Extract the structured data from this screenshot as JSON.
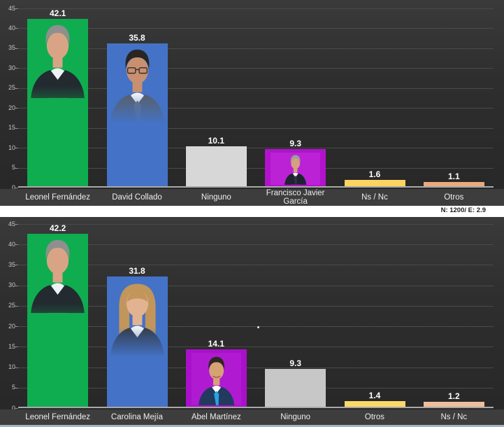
{
  "page": {
    "background": "#ffffff"
  },
  "note": {
    "text": "N: 1200/ E: 2.9"
  },
  "colors": {
    "chart_bg": "#2e2e2e",
    "gridline": "#4a4a4a",
    "axis_line": "#a8a8a8",
    "label_strip": "#3d3d3d",
    "value_label": "#ffffff",
    "tick_label": "#c6c6c6",
    "category_label": "#ededed"
  },
  "chart_data": [
    {
      "type": "bar",
      "title": "",
      "xlabel": "",
      "ylabel": "",
      "ylim": [
        0,
        45
      ],
      "ytick_step": 5,
      "grid": true,
      "legend": "none",
      "categories": [
        "Leonel Fernández",
        "David Collado",
        "Ninguno",
        "Francisco Javier García",
        "Ns / Nc",
        "Otros"
      ],
      "values": [
        42.1,
        35.8,
        10.1,
        9.3,
        1.6,
        1.1
      ],
      "bar_colors": [
        "#0fad50",
        "#4472c6",
        "#d7d7d7",
        "#b013cb",
        "#fcd45f",
        "#eaaa7d"
      ],
      "photos": [
        {
          "person": "leonel-fernandez",
          "style": "fill",
          "height_pct": 67,
          "hair": "#8f8f8f",
          "hair_style": "short",
          "skin": "#d9a486",
          "suit": "#232a30",
          "shirt": "#eef2f4",
          "glasses": false,
          "smile": false
        },
        {
          "person": "david-collado",
          "style": "fill",
          "height_pct": 58,
          "hair": "#272625",
          "hair_style": "short",
          "skin": "#c89070",
          "suit": "#585f66",
          "shirt": "#f5f5f5",
          "tie": "#6a7076",
          "glasses": true,
          "smile": false
        },
        null,
        {
          "person": "francisco-javier-garcia",
          "style": "inset",
          "inset_bg": "#bb22d6",
          "hair": "#9c9c9c",
          "hair_style": "short",
          "skin": "#d3a080",
          "suit": "#1d2431",
          "shirt": "#f5f5f5",
          "tie": "#3a3040",
          "glasses": false,
          "smile": false
        },
        null,
        null
      ]
    },
    {
      "type": "bar",
      "title": "",
      "xlabel": "",
      "ylabel": "",
      "ylim": [
        0,
        45
      ],
      "ytick_step": 5,
      "grid": true,
      "legend": "none",
      "categories": [
        "Leonel Fernández",
        "Carolina Mejía",
        "Abel Martínez",
        "Ninguno",
        "Otros",
        "Ns / Nc"
      ],
      "values": [
        42.2,
        31.8,
        14.1,
        9.3,
        1.4,
        1.2
      ],
      "bar_colors": [
        "#0fad50",
        "#4472c6",
        "#a811c9",
        "#c7c7c7",
        "#fbd968",
        "#edbf9d"
      ],
      "photos": [
        {
          "person": "leonel-fernandez",
          "style": "fill",
          "height_pct": 67,
          "hair": "#8f8f8f",
          "hair_style": "short",
          "skin": "#d9a486",
          "suit": "#232a30",
          "shirt": "#eef2f4",
          "glasses": false,
          "smile": false
        },
        {
          "person": "carolina-mejia",
          "style": "fill",
          "height_pct": 64,
          "hair": "#c2955a",
          "hair_style": "long",
          "skin": "#e2b391",
          "suit": "#333c4a",
          "shirt": "#f2f2f2",
          "glasses": false,
          "smile": false
        },
        {
          "person": "abel-martinez",
          "style": "inset",
          "inset_bg": "#b01bd2",
          "hair": "#2e2722",
          "hair_style": "short",
          "skin": "#d7a176",
          "suit": "#223a5e",
          "shirt": "#ffffff",
          "tie": "#29a3e0",
          "glasses": false,
          "smile": true
        },
        null,
        null,
        null
      ],
      "stray_dot": {
        "text": ".",
        "x_pct": 50.3,
        "value": 20
      }
    }
  ]
}
